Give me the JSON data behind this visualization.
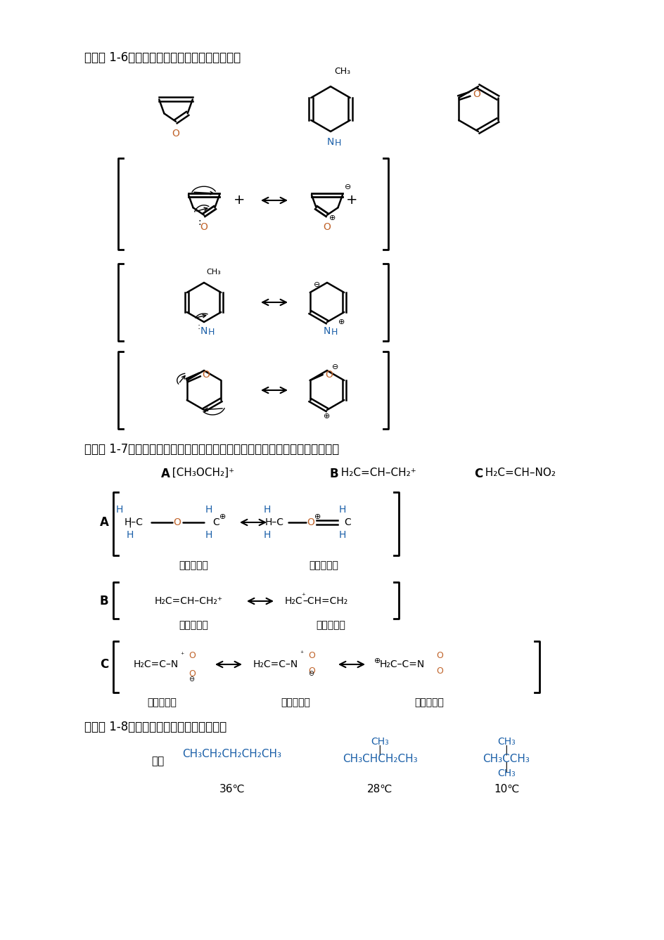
{
  "bg_color": "#ffffff",
  "title_color": "#000000",
  "blue_color": "#1a5fa8",
  "orange_color": "#c0632a",
  "black": "#000000",
  "section16_title": "思考题 1-6：请写出下列化合物共振共振结构式",
  "section17_title": "思考题 1-7：请写出下列化合物共振结构式，并比较稳定性大小和主要共振式。",
  "section18_title": "思考题 1-8：请解释下列异构体沸点差异。"
}
